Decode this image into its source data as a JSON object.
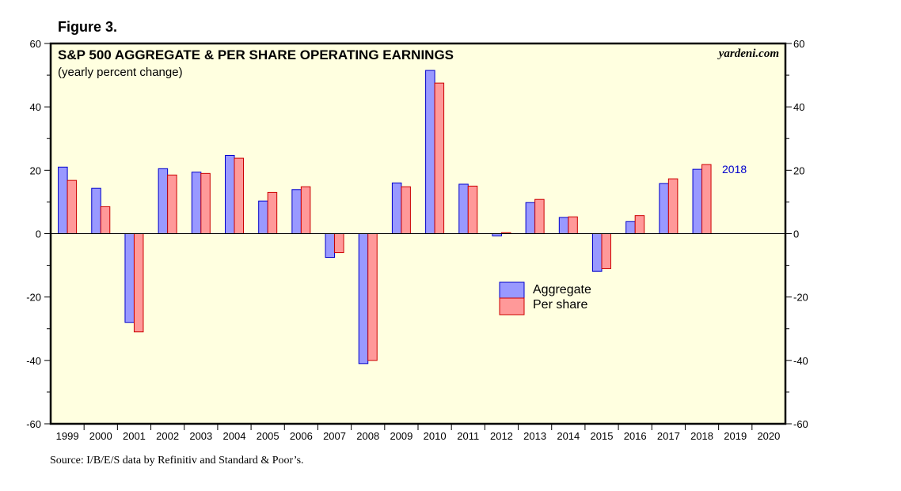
{
  "figure_label": "Figure 3.",
  "source": "Source: I/B/E/S data by Refinitiv and Standard & Poor’s.",
  "watermark": "yardeni.com",
  "colors": {
    "plot_bg": "#ffffe0",
    "aggregate_fill": "#9999ff",
    "aggregate_stroke": "#0000cc",
    "per_share_fill": "#ff9999",
    "per_share_stroke": "#cc0000",
    "annotation": "#0000cc"
  },
  "chart_data": {
    "type": "bar",
    "title": "S&P 500 AGGREGATE & PER SHARE OPERATING EARNINGS",
    "subtitle": "(yearly percent change)",
    "categories": [
      "1999",
      "2000",
      "2001",
      "2002",
      "2003",
      "2004",
      "2005",
      "2006",
      "2007",
      "2008",
      "2009",
      "2010",
      "2011",
      "2012",
      "2013",
      "2014",
      "2015",
      "2016",
      "2017",
      "2018",
      "2019",
      "2020"
    ],
    "series": [
      {
        "name": "Aggregate",
        "values": [
          21.0,
          14.3,
          -28.0,
          20.5,
          19.4,
          24.7,
          10.3,
          13.9,
          -7.5,
          -41.0,
          16.0,
          51.5,
          15.6,
          -0.7,
          9.8,
          5.1,
          -11.9,
          3.8,
          15.8,
          20.3,
          null,
          null
        ]
      },
      {
        "name": "Per share",
        "values": [
          16.8,
          8.5,
          -31.0,
          18.5,
          19.0,
          23.8,
          13.0,
          14.8,
          -6.0,
          -40.0,
          14.8,
          47.5,
          15.0,
          0.3,
          10.8,
          5.3,
          -11.0,
          5.7,
          17.3,
          21.8,
          null,
          null
        ]
      }
    ],
    "ylim": [
      -60,
      60
    ],
    "yticks": [
      -60,
      -40,
      -20,
      0,
      20,
      40,
      60
    ],
    "ytick_labels": [
      "-60",
      "-40",
      "-20",
      "0",
      "20",
      "40",
      "60"
    ],
    "annotation": "2018",
    "legend_position": "center-right",
    "xlabel": "",
    "ylabel": ""
  }
}
